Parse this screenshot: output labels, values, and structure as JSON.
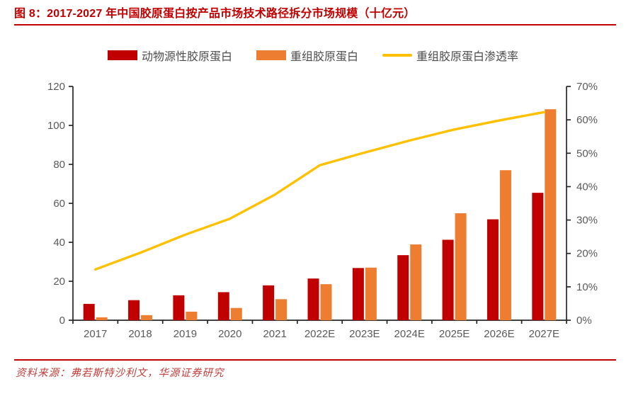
{
  "title": "图 8：2017-2027 年中国胶原蛋白按产品市场技术路径拆分市场规模（十亿元）",
  "source": {
    "label": "资料来源：",
    "text": "弗若斯特沙利文，华源证券研究"
  },
  "colors": {
    "title_red": "#c00000",
    "rule_red": "#c00000",
    "source_red": "#bf3f3c",
    "animal_bar": "#c00000",
    "recombinant_bar": "#ed7d31",
    "penetration_line": "#ffc000",
    "axis": "#262626",
    "tick_label": "#595959"
  },
  "chart_data": {
    "type": "bar+line",
    "title": "2017-2027 年中国胶原蛋白按产品市场技术路径拆分市场规模（十亿元）",
    "categories": [
      "2017",
      "2018",
      "2019",
      "2020",
      "2021",
      "2022E",
      "2023E",
      "2024E",
      "2025E",
      "2026E",
      "2027E"
    ],
    "series": [
      {
        "key": "animal-collagen",
        "name": "动物源性胶原蛋白",
        "type": "bar",
        "axis": "left",
        "color": "#c00000",
        "values": [
          8.4,
          10.3,
          12.8,
          14.4,
          17.9,
          21.4,
          26.8,
          33.4,
          41.3,
          51.8,
          65.4
        ]
      },
      {
        "key": "recombinant-collagen",
        "name": "重组胶原蛋白",
        "type": "bar",
        "axis": "left",
        "color": "#ed7d31",
        "values": [
          1.5,
          2.6,
          4.4,
          6.3,
          10.8,
          18.5,
          27.0,
          38.9,
          54.9,
          77.0,
          108.3
        ]
      },
      {
        "key": "penetration-rate",
        "name": "重组胶原蛋白渗透率",
        "type": "line",
        "axis": "right",
        "color": "#ffc000",
        "values": [
          15.2,
          20.2,
          25.6,
          30.4,
          37.6,
          46.4,
          50.2,
          53.8,
          57.1,
          59.8,
          62.3
        ]
      }
    ],
    "left_axis": {
      "min": 0,
      "max": 120,
      "step": 20,
      "tick_labels": [
        "0",
        "20",
        "40",
        "60",
        "80",
        "100",
        "120"
      ]
    },
    "right_axis": {
      "min": 0,
      "max": 70,
      "step": 10,
      "tick_labels": [
        "0%",
        "10%",
        "20%",
        "30%",
        "40%",
        "50%",
        "60%",
        "70%"
      ]
    },
    "legend_position": "top",
    "grid": false
  }
}
